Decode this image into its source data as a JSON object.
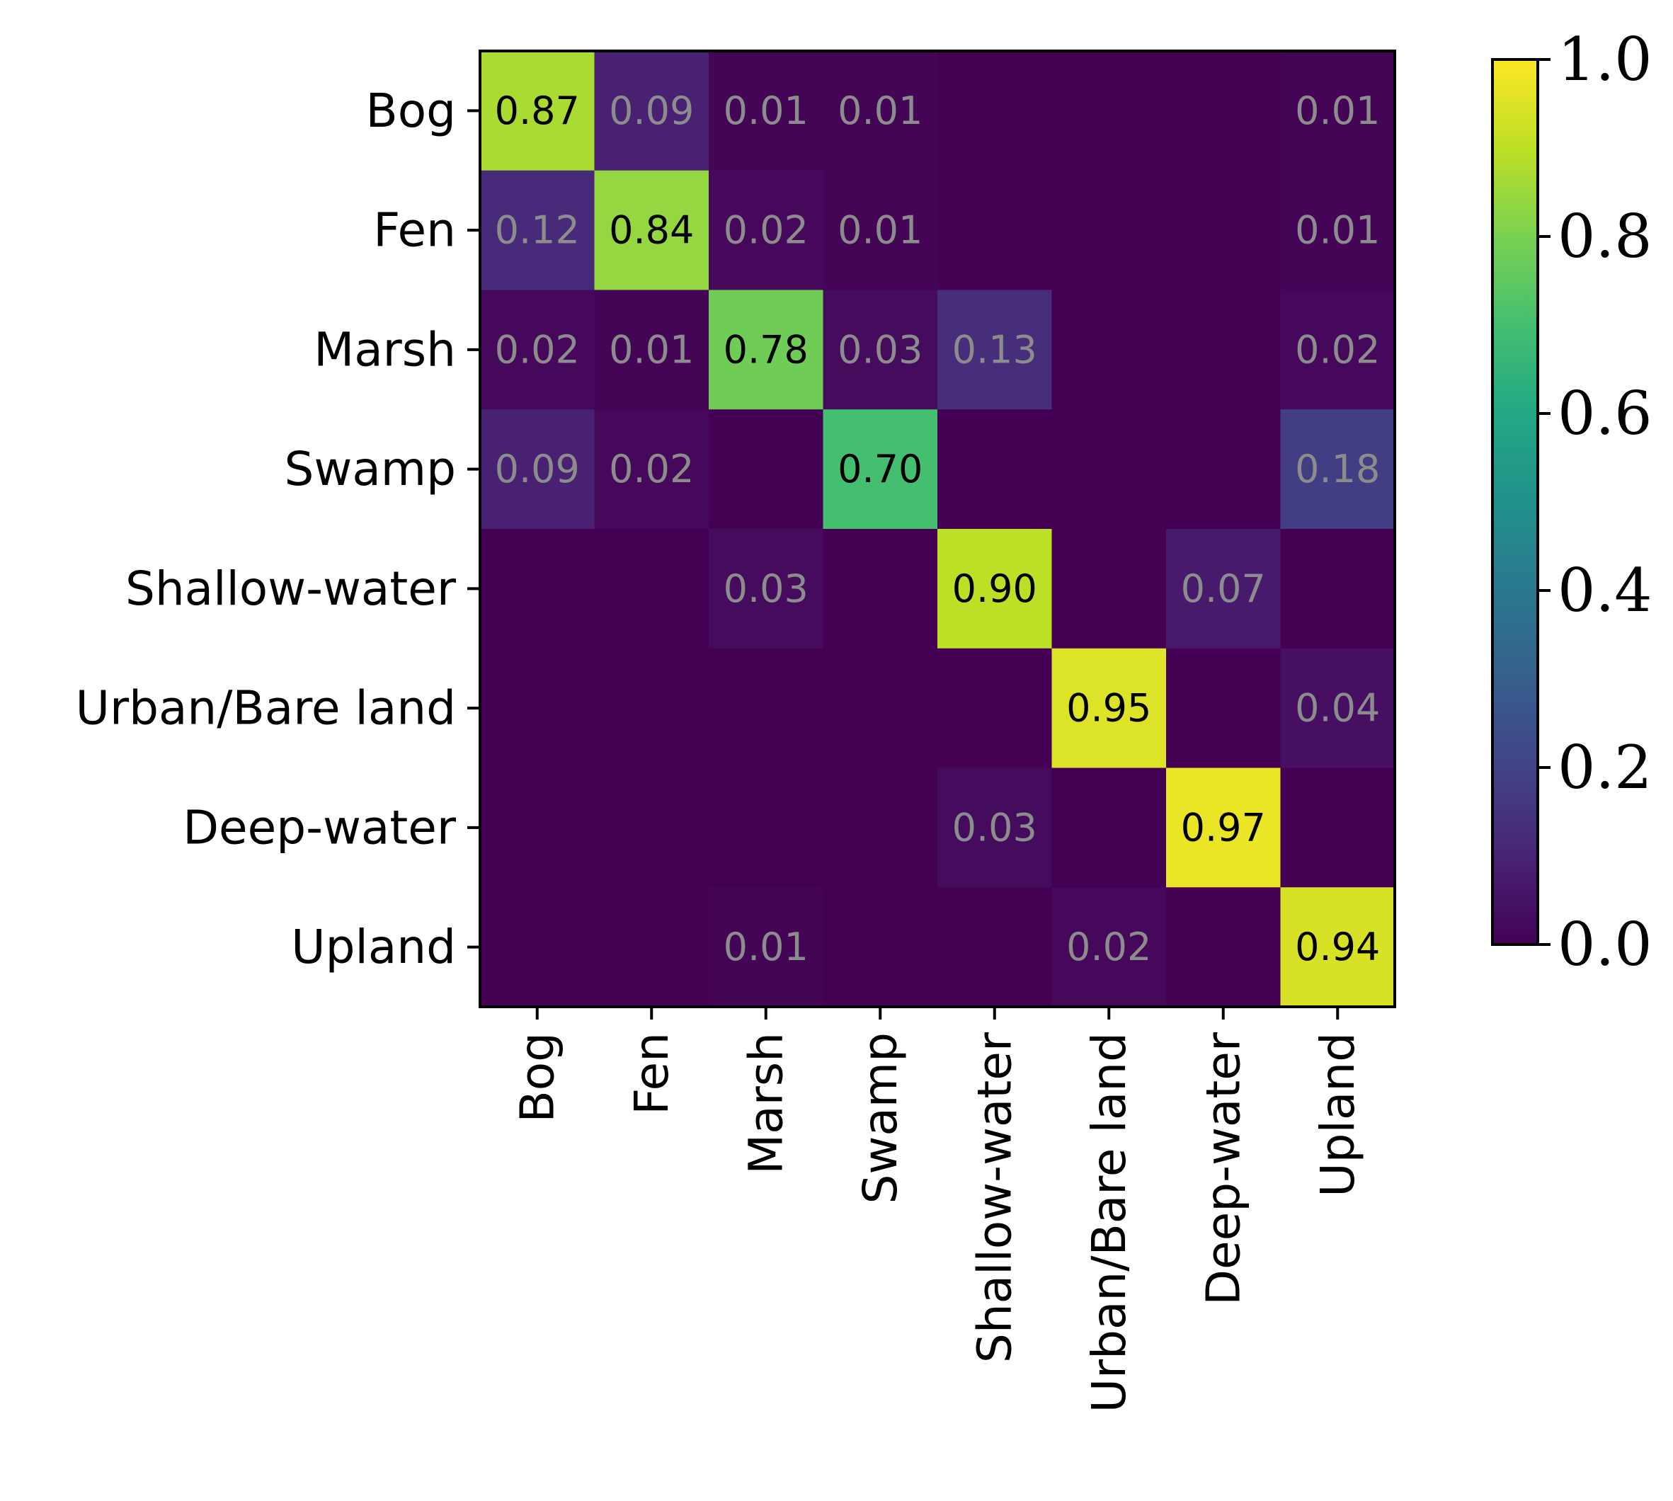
{
  "chart_data": {
    "type": "heatmap",
    "title": "",
    "xlabel": "",
    "ylabel": "",
    "row_labels": [
      "Bog",
      "Fen",
      "Marsh",
      "Swamp",
      "Shallow-water",
      "Urban/Bare land",
      "Deep-water",
      "Upland"
    ],
    "col_labels": [
      "Bog",
      "Fen",
      "Marsh",
      "Swamp",
      "Shallow-water",
      "Urban/Bare land",
      "Deep-water",
      "Upland"
    ],
    "values": [
      [
        0.87,
        0.09,
        0.01,
        0.01,
        0,
        0,
        0,
        0.01
      ],
      [
        0.12,
        0.84,
        0.02,
        0.01,
        0,
        0,
        0,
        0.01
      ],
      [
        0.02,
        0.01,
        0.78,
        0.03,
        0.13,
        0,
        0,
        0.02
      ],
      [
        0.09,
        0.02,
        0,
        0.7,
        0,
        0,
        0,
        0.18
      ],
      [
        0,
        0,
        0.03,
        0,
        0.9,
        0,
        0.07,
        0
      ],
      [
        0,
        0,
        0,
        0,
        0,
        0.95,
        0,
        0.04
      ],
      [
        0,
        0,
        0,
        0,
        0.03,
        0,
        0.97,
        0
      ],
      [
        0,
        0,
        0.01,
        0,
        0,
        0.02,
        0,
        0.94
      ]
    ],
    "cell_text": [
      [
        "0.87",
        "0.09",
        "0.01",
        "0.01",
        "",
        "",
        "",
        "0.01"
      ],
      [
        "0.12",
        "0.84",
        "0.02",
        "0.01",
        "",
        "",
        "",
        "0.01"
      ],
      [
        "0.02",
        "0.01",
        "0.78",
        "0.03",
        "0.13",
        "",
        "",
        "0.02"
      ],
      [
        "0.09",
        "0.02",
        "",
        "0.70",
        "",
        "",
        "",
        "0.18"
      ],
      [
        "",
        "",
        "0.03",
        "",
        "0.90",
        "",
        "0.07",
        ""
      ],
      [
        "",
        "",
        "",
        "",
        "",
        "0.95",
        "",
        "0.04"
      ],
      [
        "",
        "",
        "",
        "",
        "0.03",
        "",
        "0.97",
        ""
      ],
      [
        "",
        "",
        "0.01",
        "",
        "",
        "0.02",
        "",
        "0.94"
      ]
    ],
    "colormap": "viridis",
    "vmin": 0.0,
    "vmax": 1.0,
    "colorbar_ticks": [
      "0.0",
      "0.2",
      "0.4",
      "0.6",
      "0.8",
      "1.0"
    ],
    "colorbar_tick_values": [
      0.0,
      0.2,
      0.4,
      0.6,
      0.8,
      1.0
    ],
    "high_text_color": "#000000",
    "low_text_color": "#8c8c8c",
    "text_color_threshold": 0.5
  }
}
